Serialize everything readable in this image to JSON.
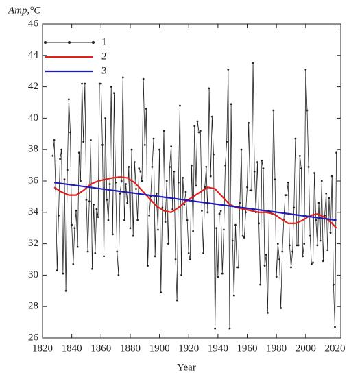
{
  "chart_data": {
    "type": "line",
    "y_label": "Amp,°C",
    "x_label": "Year",
    "xlim": [
      1820,
      2024
    ],
    "ylim": [
      26,
      46
    ],
    "xticks": [
      1820,
      1840,
      1860,
      1880,
      1900,
      1920,
      1940,
      1960,
      1980,
      2000,
      2020
    ],
    "yticks": [
      26,
      28,
      30,
      32,
      34,
      36,
      38,
      40,
      42,
      44,
      46
    ],
    "legend": "upper-left",
    "series": [
      {
        "name": "1",
        "color": "#222222",
        "marker": "dot",
        "x": [
          1827,
          1828,
          1829,
          1830,
          1831,
          1832,
          1833,
          1834,
          1835,
          1836,
          1837,
          1838,
          1839,
          1840,
          1841,
          1842,
          1843,
          1844,
          1845,
          1846,
          1847,
          1848,
          1849,
          1850,
          1851,
          1852,
          1853,
          1854,
          1855,
          1856,
          1857,
          1858,
          1859,
          1860,
          1861,
          1862,
          1863,
          1864,
          1865,
          1866,
          1867,
          1868,
          1869,
          1870,
          1871,
          1872,
          1873,
          1874,
          1875,
          1876,
          1877,
          1878,
          1879,
          1880,
          1881,
          1882,
          1883,
          1884,
          1885,
          1886,
          1887,
          1888,
          1889,
          1890,
          1891,
          1892,
          1893,
          1894,
          1895,
          1896,
          1897,
          1898,
          1899,
          1900,
          1901,
          1902,
          1903,
          1904,
          1905,
          1906,
          1907,
          1908,
          1909,
          1910,
          1911,
          1912,
          1913,
          1914,
          1915,
          1916,
          1917,
          1918,
          1919,
          1920,
          1921,
          1922,
          1923,
          1924,
          1925,
          1926,
          1927,
          1928,
          1929,
          1930,
          1931,
          1932,
          1933,
          1934,
          1935,
          1936,
          1937,
          1938,
          1939,
          1940,
          1941,
          1942,
          1943,
          1944,
          1945,
          1946,
          1947,
          1948,
          1949,
          1950,
          1951,
          1952,
          1953,
          1954,
          1955,
          1956,
          1957,
          1958,
          1959,
          1960,
          1961,
          1962,
          1963,
          1964,
          1965,
          1966,
          1967,
          1968,
          1969,
          1970,
          1971,
          1972,
          1973,
          1974,
          1975,
          1976,
          1977,
          1978,
          1979,
          1980,
          1981,
          1982,
          1983,
          1984,
          1985,
          1986,
          1987,
          1988,
          1989,
          1990,
          1991,
          1992,
          1993,
          1994,
          1995,
          1996,
          1997,
          1998,
          1999,
          2000,
          2001,
          2002,
          2003,
          2004,
          2005,
          2006,
          2007,
          2008,
          2009,
          2010,
          2011,
          2012,
          2013,
          2014,
          2015,
          2016,
          2017,
          2018,
          2019,
          2020,
          2021
        ],
        "values": [
          37.6,
          38.6,
          35.5,
          30.3,
          33.8,
          37.4,
          38.0,
          30.1,
          36.1,
          29.0,
          36.7,
          41.2,
          39.1,
          33.2,
          30.7,
          33.0,
          34.1,
          31.8,
          37.8,
          36.0,
          42.2,
          38.5,
          42.2,
          34.8,
          31.5,
          34.7,
          38.6,
          30.4,
          34.5,
          31.4,
          34.2,
          33.7,
          42.2,
          42.2,
          38.3,
          31.2,
          40.0,
          34.8,
          33.5,
          35.8,
          42.0,
          32.6,
          41.6,
          35.9,
          31.5,
          30.0,
          35.2,
          36.0,
          42.6,
          33.5,
          35.8,
          34.6,
          36.9,
          33.0,
          38.0,
          32.5,
          37.2,
          35.5,
          33.5,
          36.8,
          36.6,
          36.0,
          42.5,
          38.3,
          40.6,
          30.6,
          33.8,
          35.0,
          36.9,
          38.7,
          31.2,
          35.2,
          32.9,
          38.0,
          28.9,
          34.3,
          39.2,
          33.4,
          36.0,
          32.0,
          36.9,
          38.2,
          34.2,
          36.6,
          31.0,
          28.4,
          35.9,
          40.8,
          30.0,
          36.2,
          34.5,
          35.3,
          33.5,
          31.4,
          31.0,
          37.0,
          32.8,
          39.5,
          35.7,
          39.8,
          39.1,
          39.2,
          34.1,
          31.4,
          35.6,
          36.9,
          34.0,
          41.9,
          36.3,
          40.1,
          37.7,
          26.6,
          33.0,
          29.9,
          33.9,
          34.1,
          30.1,
          32.9,
          37.0,
          38.5,
          43.1,
          26.6,
          40.9,
          32.2,
          28.7,
          33.2,
          30.5,
          30.5,
          34.6,
          38.0,
          32.5,
          32.4,
          34.0,
          35.6,
          39.7,
          35.4,
          35.4,
          43.5,
          36.6,
          34.0,
          37.2,
          33.3,
          29.4,
          37.3,
          36.8,
          30.6,
          31.3,
          27.6,
          34.1,
          34.0,
          33.9,
          40.5,
          36.1,
          29.9,
          32.0,
          31.0,
          27.9,
          31.5,
          33.5,
          35.1,
          35.1,
          35.9,
          31.9,
          30.5,
          31.5,
          34.3,
          38.7,
          31.9,
          31.9,
          37.6,
          36.8,
          31.2,
          32.0,
          43.1,
          40.5,
          36.9,
          32.5,
          30.7,
          30.8,
          36.5,
          33.5,
          31.9,
          34.6,
          32.2,
          36.0,
          30.9,
          33.8,
          35.2,
          31.6,
          34.9,
          32.7,
          36.3,
          29.4,
          26.7,
          37.8
        ]
      },
      {
        "name": "2",
        "color": "#e0201c",
        "x": [
          1828,
          1833,
          1838,
          1843,
          1848,
          1853,
          1858,
          1863,
          1868,
          1873,
          1878,
          1883,
          1888,
          1893,
          1898,
          1903,
          1908,
          1913,
          1918,
          1923,
          1928,
          1933,
          1938,
          1943,
          1948,
          1953,
          1958,
          1963,
          1968,
          1973,
          1978,
          1983,
          1988,
          1993,
          1998,
          2003,
          2008,
          2013,
          2018,
          2021
        ],
        "values": [
          35.6,
          35.3,
          35.1,
          35.1,
          35.4,
          35.8,
          36.0,
          36.1,
          36.2,
          36.25,
          36.2,
          35.9,
          35.4,
          34.9,
          34.4,
          34.1,
          34.0,
          34.3,
          34.7,
          35.0,
          35.3,
          35.6,
          35.5,
          35.0,
          34.5,
          34.3,
          34.2,
          34.1,
          34.0,
          34.0,
          33.9,
          33.6,
          33.3,
          33.3,
          33.5,
          33.8,
          33.9,
          33.7,
          33.3,
          33.0
        ]
      },
      {
        "name": "3",
        "color": "#1c1cb8",
        "x": [
          1828,
          2021
        ],
        "values": [
          35.9,
          33.5
        ]
      }
    ]
  }
}
